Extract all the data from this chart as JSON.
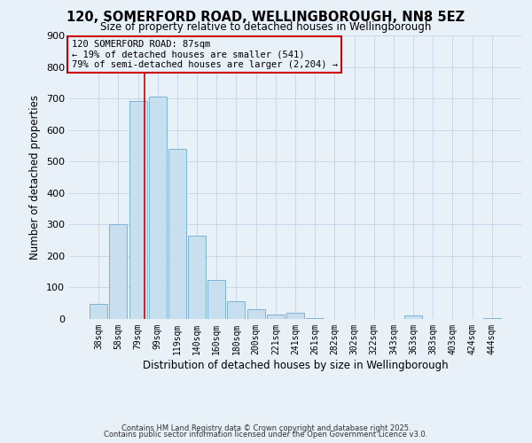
{
  "title": "120, SOMERFORD ROAD, WELLINGBOROUGH, NN8 5EZ",
  "subtitle": "Size of property relative to detached houses in Wellingborough",
  "xlabel": "Distribution of detached houses by size in Wellingborough",
  "ylabel": "Number of detached properties",
  "bar_labels": [
    "38sqm",
    "58sqm",
    "79sqm",
    "99sqm",
    "119sqm",
    "140sqm",
    "160sqm",
    "180sqm",
    "200sqm",
    "221sqm",
    "241sqm",
    "261sqm",
    "282sqm",
    "302sqm",
    "322sqm",
    "343sqm",
    "363sqm",
    "383sqm",
    "403sqm",
    "424sqm",
    "444sqm"
  ],
  "bar_heights": [
    47,
    300,
    693,
    706,
    540,
    263,
    125,
    55,
    30,
    15,
    20,
    3,
    1,
    0,
    0,
    0,
    10,
    0,
    0,
    0,
    2
  ],
  "bar_color": "#c8dff0",
  "bar_edge_color": "#7fb3d3",
  "grid_color": "#c8d8e8",
  "background_color": "#e8f0f8",
  "vline_color": "#cc0000",
  "vline_pos": 2.35,
  "annotation_title": "120 SOMERFORD ROAD: 87sqm",
  "annotation_line1": "← 19% of detached houses are smaller (541)",
  "annotation_line2": "79% of semi-detached houses are larger (2,204) →",
  "annotation_box_color": "#cc0000",
  "ylim": [
    0,
    900
  ],
  "yticks": [
    0,
    100,
    200,
    300,
    400,
    500,
    600,
    700,
    800,
    900
  ],
  "footer1": "Contains HM Land Registry data © Crown copyright and database right 2025.",
  "footer2": "Contains public sector information licensed under the Open Government Licence v3.0."
}
